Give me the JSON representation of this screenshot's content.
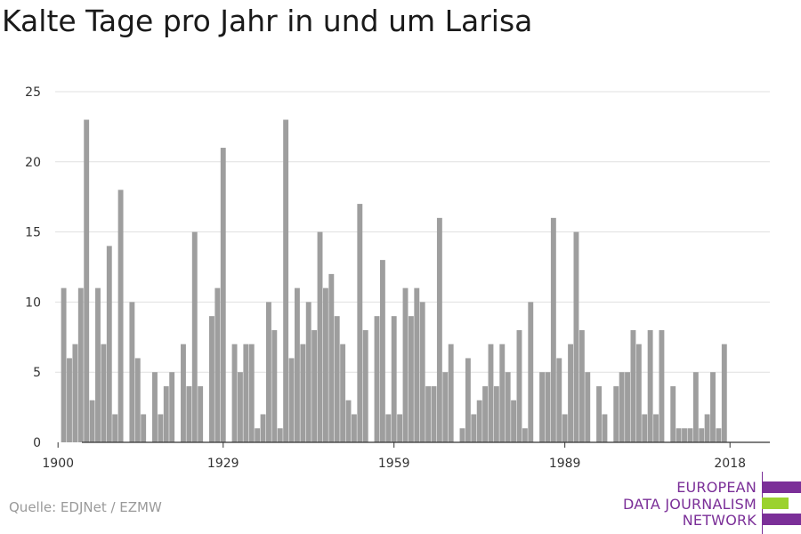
{
  "chart_data": {
    "type": "bar",
    "title": "Kalte Tage pro Jahr in und um Larisa",
    "xlabel": "",
    "ylabel": "",
    "x": [
      1900,
      1901,
      1902,
      1903,
      1904,
      1905,
      1906,
      1907,
      1908,
      1909,
      1910,
      1911,
      1912,
      1913,
      1914,
      1915,
      1916,
      1917,
      1918,
      1919,
      1920,
      1921,
      1922,
      1923,
      1924,
      1925,
      1926,
      1927,
      1928,
      1929,
      1930,
      1931,
      1932,
      1933,
      1934,
      1935,
      1936,
      1937,
      1938,
      1939,
      1940,
      1941,
      1942,
      1943,
      1944,
      1945,
      1946,
      1947,
      1948,
      1949,
      1950,
      1951,
      1952,
      1953,
      1954,
      1955,
      1956,
      1957,
      1958,
      1959,
      1960,
      1961,
      1962,
      1963,
      1964,
      1965,
      1966,
      1967,
      1968,
      1969,
      1970,
      1971,
      1972,
      1973,
      1974,
      1975,
      1976,
      1977,
      1978,
      1979,
      1980,
      1981,
      1982,
      1983,
      1984,
      1985,
      1986,
      1987,
      1988,
      1989,
      1990,
      1991,
      1992,
      1993,
      1994,
      1995,
      1996,
      1997,
      1998,
      1999,
      2000,
      2001,
      2002,
      2003,
      2004,
      2005,
      2006,
      2007,
      2008,
      2009,
      2010,
      2011,
      2012,
      2013,
      2014,
      2015,
      2016,
      2017,
      2018
    ],
    "values": [
      0,
      11,
      6,
      7,
      11,
      23,
      3,
      11,
      7,
      14,
      2,
      18,
      0,
      10,
      6,
      2,
      0,
      5,
      2,
      4,
      5,
      0,
      7,
      4,
      15,
      4,
      0,
      9,
      11,
      21,
      0,
      7,
      5,
      7,
      7,
      1,
      2,
      10,
      8,
      1,
      23,
      6,
      11,
      7,
      10,
      8,
      15,
      11,
      12,
      9,
      7,
      3,
      2,
      17,
      8,
      0,
      9,
      13,
      2,
      9,
      2,
      11,
      9,
      11,
      10,
      4,
      4,
      16,
      5,
      7,
      0,
      1,
      6,
      2,
      3,
      4,
      7,
      4,
      7,
      5,
      3,
      8,
      1,
      10,
      0,
      5,
      5,
      16,
      6,
      2,
      7,
      15,
      8,
      5,
      0,
      4,
      2,
      0,
      4,
      5,
      5,
      8,
      7,
      2,
      8,
      2,
      8,
      0,
      4,
      1,
      1,
      1,
      5,
      1,
      2,
      5,
      1,
      7,
      0
    ],
    "ylim": [
      0,
      25
    ],
    "yticks": [
      0,
      5,
      10,
      15,
      20,
      25
    ],
    "xticks": [
      1900,
      1929,
      1959,
      1989,
      2018
    ],
    "xlim": [
      1899.5,
      2025
    ],
    "grid": true,
    "bar_color": "#9e9e9e",
    "grid_color": "#e0e0e0",
    "axis_color": "#333333"
  },
  "source": "Quelle: EDJNet / EZMW",
  "logo": {
    "lines": [
      "EUROPEAN",
      "DATA JOURNALISM",
      "NETWORK"
    ],
    "purple": "#7b2f98",
    "green": "#9bd22f"
  }
}
